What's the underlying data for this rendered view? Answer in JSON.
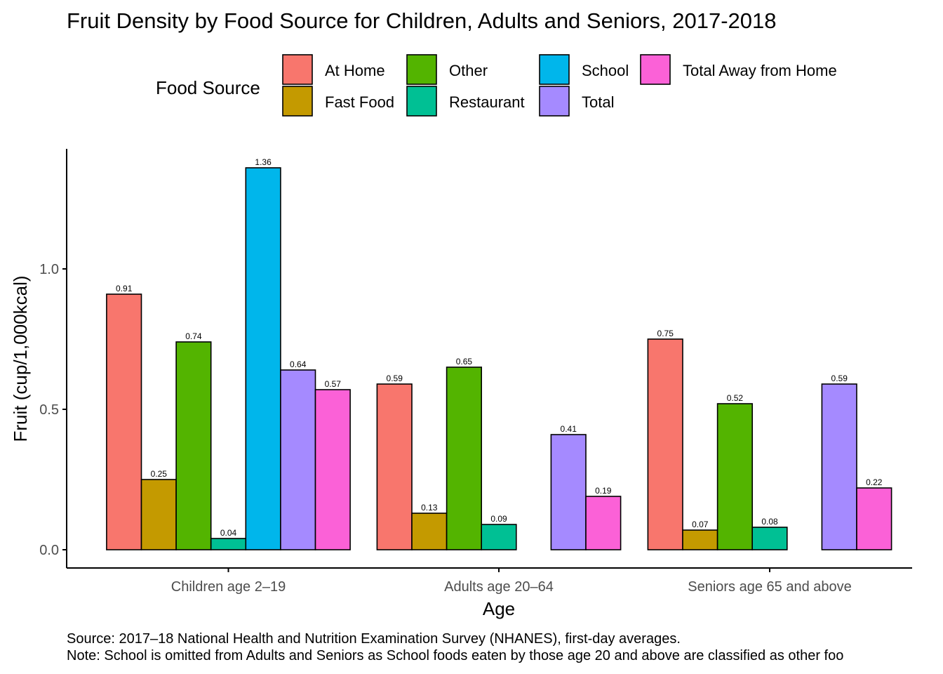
{
  "chart_data": {
    "type": "bar",
    "title": "Fruit Density by Food Source for Children, Adults and Seniors, 2017-2018",
    "xlabel": "Age",
    "ylabel": "Fruit (cup/1,000kcal)",
    "ylim": [
      0,
      1.36
    ],
    "yticks": [
      "0.0",
      "0.5",
      "1.0"
    ],
    "grid": false,
    "legend_position": "top",
    "legend_title": "Food Source",
    "categories": [
      "Children age 2–19",
      "Adults age 20–64",
      "Seniors age 65 and above"
    ],
    "series": [
      {
        "name": "At Home",
        "color": "#F8766D",
        "values": [
          0.91,
          0.59,
          0.75
        ],
        "labels": [
          "0.91",
          "0.59",
          "0.75"
        ]
      },
      {
        "name": "Fast Food",
        "color": "#C49A00",
        "values": [
          0.25,
          0.13,
          0.07
        ],
        "labels": [
          "0.25",
          "0.13",
          "0.07"
        ]
      },
      {
        "name": "Other",
        "color": "#53B400",
        "values": [
          0.74,
          0.65,
          0.52
        ],
        "labels": [
          "0.74",
          "0.65",
          "0.52"
        ]
      },
      {
        "name": "Restaurant",
        "color": "#00C094",
        "values": [
          0.04,
          0.09,
          0.08
        ],
        "labels": [
          "0.04",
          "0.09",
          "0.08"
        ]
      },
      {
        "name": "School",
        "color": "#00B6EB",
        "values": [
          1.36,
          null,
          null
        ],
        "labels": [
          "1.36",
          "",
          ""
        ]
      },
      {
        "name": "Total",
        "color": "#A58AFF",
        "values": [
          0.64,
          0.41,
          0.59
        ],
        "labels": [
          "0.64",
          "0.41",
          "0.59"
        ]
      },
      {
        "name": "Total Away from Home",
        "color": "#FB61D7",
        "values": [
          0.57,
          0.19,
          0.22
        ],
        "labels": [
          "0.57",
          "0.19",
          "0.22"
        ]
      }
    ],
    "caption": [
      "Source: 2017–18 National Health and Nutrition Examination Survey (NHANES), first-day averages.",
      "Note: School is omitted from Adults and Seniors as School foods eaten by those age 20 and above are classified as other foo"
    ]
  }
}
